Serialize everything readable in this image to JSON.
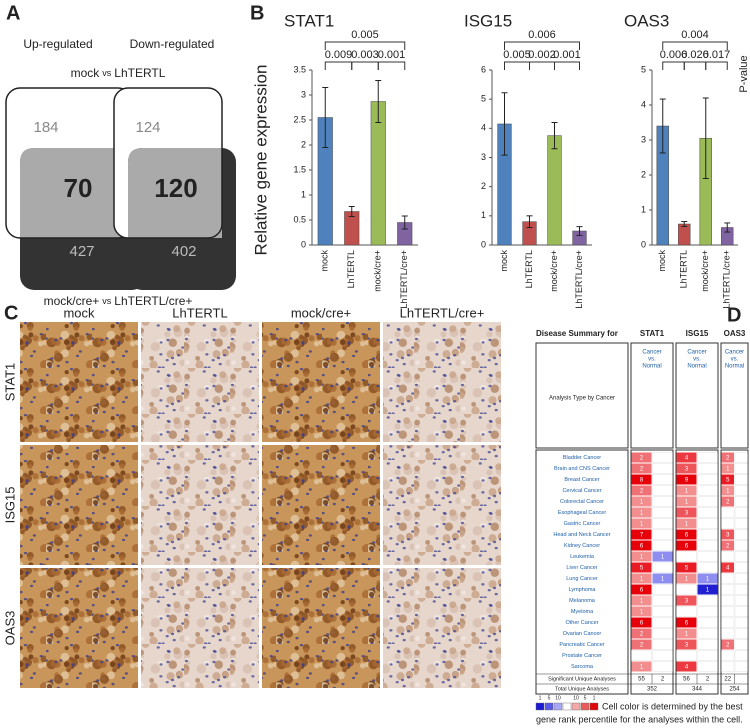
{
  "panel_a": {
    "label": "A",
    "left_title": "Up-regulated",
    "right_title": "Down-regulated",
    "top_caption": [
      "mock",
      "vs",
      "LhTERTL"
    ],
    "bottom_caption": [
      "mock/cre+",
      "vs",
      "LhTERTL/cre+"
    ],
    "venns": [
      {
        "top": 184,
        "overlap": 70,
        "bottom": 427
      },
      {
        "top": 124,
        "overlap": 120,
        "bottom": 402
      }
    ]
  },
  "panel_b": {
    "label": "B",
    "y_label": "Relative gene expression",
    "p_label": "P-value"
  },
  "chart_data": [
    {
      "type": "bar",
      "title": "STAT1",
      "categories": [
        "mock",
        "LhTERTL",
        "mock/cre+",
        "LhTERTL/cre+"
      ],
      "values": [
        2.55,
        0.67,
        2.87,
        0.45
      ],
      "errors": [
        0.6,
        0.1,
        0.42,
        0.13
      ],
      "colors": [
        "#4f81bd",
        "#c0504d",
        "#9bbb59",
        "#8064a2"
      ],
      "ylim": [
        0,
        3.5
      ],
      "yticks": [
        0,
        0.5,
        1,
        1.5,
        2,
        2.5,
        3,
        3.5
      ],
      "pvalues": [
        0.005,
        0.009,
        0.003,
        0.001
      ]
    },
    {
      "type": "bar",
      "title": "ISG15",
      "categories": [
        "mock",
        "LhTERTL",
        "mock/cre+",
        "LhTERTL/cre+"
      ],
      "values": [
        4.15,
        0.8,
        3.75,
        0.48
      ],
      "errors": [
        1.07,
        0.2,
        0.45,
        0.15
      ],
      "colors": [
        "#4f81bd",
        "#c0504d",
        "#9bbb59",
        "#8064a2"
      ],
      "ylim": [
        0,
        6
      ],
      "yticks": [
        0,
        1,
        2,
        3,
        4,
        5,
        6
      ],
      "pvalues": [
        0.006,
        0.005,
        0.002,
        0.001
      ]
    },
    {
      "type": "bar",
      "title": "OAS3",
      "categories": [
        "mock",
        "LhTERTL",
        "mock/cre+",
        "LhTERTL/cre+"
      ],
      "values": [
        3.4,
        0.6,
        3.05,
        0.5
      ],
      "errors": [
        0.77,
        0.07,
        1.15,
        0.13
      ],
      "colors": [
        "#4f81bd",
        "#c0504d",
        "#9bbb59",
        "#8064a2"
      ],
      "ylim": [
        0,
        5
      ],
      "yticks": [
        0,
        1,
        2,
        3,
        4,
        5
      ],
      "pvalues": [
        0.004,
        0.006,
        0.026,
        0.017
      ]
    }
  ],
  "panel_c": {
    "label": "C",
    "columns": [
      "mock",
      "LhTERTL",
      "mock/cre+",
      "LhTERTL/cre+"
    ],
    "rows": [
      "STAT1",
      "ISG15",
      "OAS3"
    ]
  },
  "panel_d": {
    "label": "D",
    "title": "Disease Summary for",
    "row_header": "Analysis Type by Cancer",
    "genes": [
      {
        "name": "STAT1",
        "header": [
          "Cancer",
          "vs.",
          "Normal"
        ],
        "significant": [
          55,
          2
        ],
        "total": 352
      },
      {
        "name": "ISG15",
        "header": [
          "Cancer",
          "vs.",
          "Normal"
        ],
        "significant": [
          56,
          2
        ],
        "total": 344
      },
      {
        "name": "OAS3",
        "header": [
          "Cancer",
          "vs.",
          "Normal"
        ],
        "significant": [
          22,
          null
        ],
        "total": 254
      }
    ],
    "rows": [
      {
        "name": "Bladder Cancer",
        "cells": [
          [
            2,
            null
          ],
          [
            4,
            null
          ],
          [
            2,
            null
          ]
        ]
      },
      {
        "name": "Brain and CNS Cancer",
        "cells": [
          [
            2,
            null
          ],
          [
            3,
            null
          ],
          [
            1,
            null
          ]
        ]
      },
      {
        "name": "Breast Cancer",
        "cells": [
          [
            8,
            null
          ],
          [
            9,
            null
          ],
          [
            5,
            null
          ]
        ]
      },
      {
        "name": "Cervical Cancer",
        "cells": [
          [
            2,
            null
          ],
          [
            1,
            null
          ],
          [
            1,
            null
          ]
        ]
      },
      {
        "name": "Colorectal Cancer",
        "cells": [
          [
            1,
            null
          ],
          [
            1,
            null
          ],
          [
            2,
            null
          ]
        ]
      },
      {
        "name": "Esophageal Cancer",
        "cells": [
          [
            1,
            null
          ],
          [
            3,
            null
          ],
          [
            null,
            null
          ]
        ]
      },
      {
        "name": "Gastric Cancer",
        "cells": [
          [
            1,
            null
          ],
          [
            1,
            null
          ],
          [
            null,
            null
          ]
        ]
      },
      {
        "name": "Head and Neck Cancer",
        "cells": [
          [
            7,
            null
          ],
          [
            6,
            null
          ],
          [
            3,
            null
          ]
        ]
      },
      {
        "name": "Kidney Cancer",
        "cells": [
          [
            6,
            null
          ],
          [
            6,
            null
          ],
          [
            2,
            null
          ]
        ]
      },
      {
        "name": "Leukemia",
        "cells": [
          [
            1,
            1
          ],
          [
            null,
            null
          ],
          [
            null,
            null
          ]
        ]
      },
      {
        "name": "Liver Cancer",
        "cells": [
          [
            5,
            null
          ],
          [
            5,
            null
          ],
          [
            4,
            null
          ]
        ]
      },
      {
        "name": "Lung Cancer",
        "cells": [
          [
            1,
            1
          ],
          [
            1,
            1
          ],
          [
            null,
            null
          ]
        ]
      },
      {
        "name": "Lymphoma",
        "cells": [
          [
            6,
            null
          ],
          [
            null,
            1
          ],
          [
            null,
            null
          ]
        ]
      },
      {
        "name": "Melanoma",
        "cells": [
          [
            1,
            null
          ],
          [
            3,
            null
          ],
          [
            null,
            null
          ]
        ]
      },
      {
        "name": "Myeloma",
        "cells": [
          [
            1,
            null
          ],
          [
            null,
            null
          ],
          [
            null,
            null
          ]
        ]
      },
      {
        "name": "Other Cancer",
        "cells": [
          [
            6,
            null
          ],
          [
            6,
            null
          ],
          [
            null,
            null
          ]
        ]
      },
      {
        "name": "Ovarian Cancer",
        "cells": [
          [
            2,
            null
          ],
          [
            1,
            null
          ],
          [
            null,
            null
          ]
        ]
      },
      {
        "name": "Pancreatic Cancer",
        "cells": [
          [
            2,
            null
          ],
          [
            3,
            null
          ],
          [
            2,
            null
          ]
        ]
      },
      {
        "name": "Prostate Cancer",
        "cells": [
          [
            null,
            null
          ],
          [
            null,
            null
          ],
          [
            null,
            null
          ]
        ]
      },
      {
        "name": "Sarcoma",
        "cells": [
          [
            1,
            null
          ],
          [
            4,
            null
          ],
          [
            null,
            null
          ]
        ]
      }
    ],
    "significant_label": "Significant Unique Analyses",
    "total_label": "Total Unique Analyses",
    "legend_scale": [
      1,
      5,
      10,
      10,
      5,
      1
    ],
    "legend_text": [
      "Cell color is determined by the best",
      "gene rank percentile for the analyses within the cell."
    ]
  }
}
